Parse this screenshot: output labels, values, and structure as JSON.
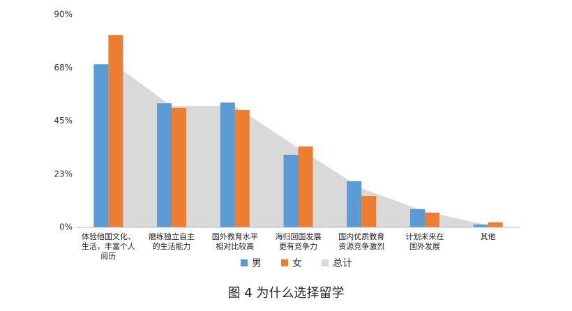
{
  "chart_data": {
    "type": "bar",
    "caption": "图 4 为什么选择留学",
    "categories": [
      "体验他国文化、\n生活，丰富个人\n阅历",
      "磨练独立自主\n的生活能力",
      "国外教育水平\n相对比较高",
      "海归回国发展\n更有竞争力",
      "国内优质教育\n资源竞争激烈",
      "计划未来在\n国外发展",
      "其他"
    ],
    "series": [
      {
        "name": "男",
        "color": "#5b9bd5",
        "values": [
          69.0,
          52.5,
          52.8,
          30.7,
          19.5,
          7.7,
          1.2
        ]
      },
      {
        "name": "女",
        "color": "#ed7d31",
        "values": [
          81.4,
          50.5,
          49.6,
          34.2,
          13.3,
          6.2,
          2.1
        ]
      },
      {
        "name": "总计",
        "color": "#d9d9d9",
        "type": "area",
        "values": [
          70.8,
          51.3,
          51.3,
          33.6,
          16.5,
          6.8,
          0.9
        ]
      }
    ],
    "ylim": [
      0,
      90
    ],
    "yticks": [
      {
        "value": 0,
        "label": "0%"
      },
      {
        "value": 22.5,
        "label": "23%"
      },
      {
        "value": 45,
        "label": "45%"
      },
      {
        "value": 67.5,
        "label": "68%"
      },
      {
        "value": 90,
        "label": "90%"
      }
    ]
  }
}
